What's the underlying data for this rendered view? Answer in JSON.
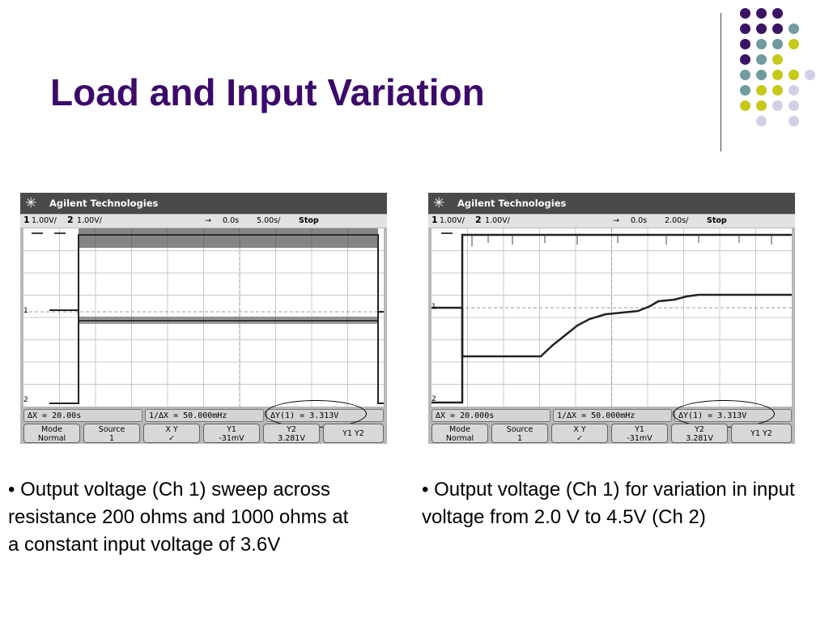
{
  "slide": {
    "title": "Load and Input Variation",
    "title_color": "#3b0a6b",
    "dot_colors": {
      "purple": "#3b1466",
      "teal": "#6f9c9c",
      "yellow": "#c8c81a",
      "lavender": "#d0d0e8"
    }
  },
  "scopes": [
    {
      "brand": "Agilent Technologies",
      "ch1_label": "1",
      "ch1_scale": "1.00V/",
      "ch2_label": "2",
      "ch2_scale": "1.00V/",
      "trig_arrow": "→",
      "time_offset": "0.0s",
      "time_div": "5.00s/",
      "run_state": "Stop",
      "delta_x": "ΔX = 20.00s",
      "inv_delta_x": "1/ΔX = 50.000mHz",
      "delta_y": "ΔY(1) = 3.313V",
      "softkeys": [
        {
          "top": "Mode",
          "bottom": "Normal"
        },
        {
          "top": "Source",
          "bottom": "1"
        },
        {
          "top": "X    Y",
          "bottom": "✓"
        },
        {
          "top": "Y1",
          "bottom": "-31mV"
        },
        {
          "top": "Y2",
          "bottom": "3.281V"
        },
        {
          "top": "Y1  Y2",
          "bottom": ""
        }
      ],
      "caption": "• Output voltage (Ch 1) sweep across resistance 200 ohms and 1000 ohms at a constant input voltage of 3.6V"
    },
    {
      "brand": "Agilent Technologies",
      "ch1_label": "1",
      "ch1_scale": "1.00V/",
      "ch2_label": "2",
      "ch2_scale": "1.00V/",
      "trig_arrow": "→",
      "time_offset": "0.0s",
      "time_div": "2.00s/",
      "run_state": "Stop",
      "delta_x": "ΔX = 20.000s",
      "inv_delta_x": "1/ΔX = 50.000mHz",
      "delta_y": "ΔY(1) = 3.313V",
      "softkeys": [
        {
          "top": "Mode",
          "bottom": "Normal"
        },
        {
          "top": "Source",
          "bottom": "1"
        },
        {
          "top": "X    Y",
          "bottom": "✓"
        },
        {
          "top": "Y1",
          "bottom": "-31mV"
        },
        {
          "top": "Y2",
          "bottom": "3.281V"
        },
        {
          "top": "Y1  Y2",
          "bottom": ""
        }
      ],
      "caption": "• Output voltage (Ch 1) for variation in input voltage from 2.0 V to 4.5V (Ch 2)"
    }
  ]
}
